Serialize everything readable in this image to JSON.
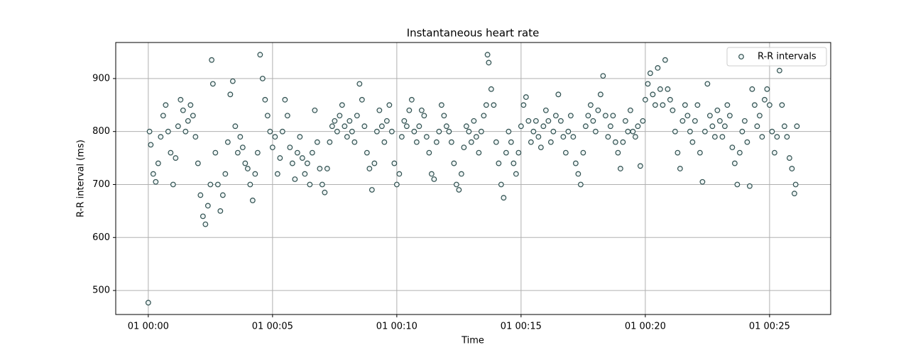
{
  "chart_data": {
    "type": "scatter",
    "title": "Instantaneous heart rate",
    "xlabel": "Time",
    "ylabel": "R-R interval (ms)",
    "series": [
      {
        "name": "R-R intervals",
        "color": "#2f4f4f",
        "marker_fill": "#eef4f4",
        "x": [
          0,
          0.05,
          0.1,
          0.2,
          0.3,
          0.4,
          0.5,
          0.6,
          0.7,
          0.8,
          0.9,
          1.0,
          1.1,
          1.2,
          1.3,
          1.4,
          1.5,
          1.6,
          1.7,
          1.8,
          1.9,
          2.0,
          2.1,
          2.2,
          2.3,
          2.4,
          2.5,
          2.55,
          2.6,
          2.7,
          2.8,
          2.9,
          3.0,
          3.1,
          3.2,
          3.3,
          3.4,
          3.5,
          3.6,
          3.7,
          3.8,
          3.9,
          4.0,
          4.1,
          4.2,
          4.3,
          4.4,
          4.5,
          4.6,
          4.7,
          4.8,
          4.9,
          5.0,
          5.1,
          5.2,
          5.3,
          5.4,
          5.5,
          5.6,
          5.7,
          5.8,
          5.9,
          6.0,
          6.1,
          6.2,
          6.3,
          6.4,
          6.5,
          6.6,
          6.7,
          6.8,
          6.9,
          7.0,
          7.1,
          7.2,
          7.3,
          7.4,
          7.5,
          7.6,
          7.7,
          7.8,
          7.9,
          8.0,
          8.1,
          8.2,
          8.3,
          8.4,
          8.5,
          8.6,
          8.7,
          8.8,
          8.9,
          9.0,
          9.1,
          9.2,
          9.3,
          9.4,
          9.5,
          9.6,
          9.7,
          9.8,
          9.9,
          10.0,
          10.1,
          10.2,
          10.3,
          10.4,
          10.5,
          10.6,
          10.7,
          10.8,
          10.9,
          11.0,
          11.1,
          11.2,
          11.3,
          11.4,
          11.5,
          11.6,
          11.7,
          11.8,
          11.9,
          12.0,
          12.1,
          12.2,
          12.3,
          12.4,
          12.5,
          12.6,
          12.7,
          12.8,
          12.9,
          13.0,
          13.1,
          13.2,
          13.3,
          13.4,
          13.5,
          13.6,
          13.65,
          13.7,
          13.8,
          13.9,
          14.0,
          14.1,
          14.2,
          14.3,
          14.4,
          14.5,
          14.6,
          14.7,
          14.8,
          14.9,
          15.0,
          15.1,
          15.2,
          15.3,
          15.4,
          15.5,
          15.6,
          15.7,
          15.8,
          15.9,
          16.0,
          16.1,
          16.2,
          16.3,
          16.4,
          16.5,
          16.6,
          16.7,
          16.8,
          16.9,
          17.0,
          17.1,
          17.2,
          17.3,
          17.4,
          17.5,
          17.6,
          17.7,
          17.8,
          17.9,
          18.0,
          18.1,
          18.2,
          18.3,
          18.4,
          18.5,
          18.6,
          18.7,
          18.8,
          18.9,
          19.0,
          19.1,
          19.2,
          19.3,
          19.4,
          19.5,
          19.6,
          19.7,
          19.8,
          19.9,
          20.0,
          20.1,
          20.2,
          20.3,
          20.4,
          20.5,
          20.6,
          20.7,
          20.8,
          20.9,
          21.0,
          21.1,
          21.2,
          21.3,
          21.4,
          21.5,
          21.6,
          21.7,
          21.8,
          21.9,
          22.0,
          22.1,
          22.2,
          22.3,
          22.4,
          22.5,
          22.6,
          22.7,
          22.8,
          22.9,
          23.0,
          23.1,
          23.2,
          23.3,
          23.4,
          23.5,
          23.6,
          23.7,
          23.8,
          23.9,
          24.0,
          24.1,
          24.2,
          24.3,
          24.4,
          24.5,
          24.6,
          24.7,
          24.8,
          24.9,
          25.0,
          25.1,
          25.2,
          25.3,
          25.4,
          25.5,
          25.6,
          25.7,
          25.8,
          25.9,
          26.0,
          26.05,
          26.1
        ],
        "values": [
          477,
          800,
          775,
          720,
          705,
          740,
          790,
          830,
          850,
          800,
          760,
          700,
          750,
          810,
          860,
          840,
          800,
          820,
          850,
          830,
          790,
          740,
          680,
          640,
          625,
          660,
          700,
          935,
          890,
          760,
          700,
          650,
          680,
          720,
          780,
          870,
          895,
          810,
          760,
          790,
          770,
          740,
          730,
          700,
          670,
          720,
          760,
          945,
          900,
          860,
          830,
          800,
          770,
          790,
          720,
          750,
          800,
          860,
          830,
          770,
          740,
          710,
          760,
          790,
          750,
          720,
          740,
          700,
          760,
          840,
          780,
          730,
          700,
          685,
          730,
          780,
          810,
          820,
          800,
          830,
          850,
          810,
          790,
          820,
          800,
          780,
          830,
          890,
          860,
          810,
          760,
          730,
          690,
          740,
          800,
          840,
          810,
          780,
          820,
          850,
          800,
          740,
          700,
          720,
          790,
          820,
          810,
          840,
          860,
          800,
          780,
          810,
          840,
          830,
          790,
          760,
          720,
          710,
          780,
          800,
          850,
          830,
          810,
          800,
          780,
          740,
          700,
          690,
          720,
          770,
          810,
          800,
          780,
          820,
          790,
          760,
          800,
          830,
          850,
          945,
          930,
          880,
          850,
          780,
          740,
          700,
          675,
          760,
          800,
          780,
          740,
          720,
          760,
          810,
          850,
          865,
          820,
          780,
          800,
          820,
          790,
          770,
          810,
          840,
          820,
          780,
          800,
          830,
          870,
          820,
          790,
          760,
          800,
          830,
          790,
          740,
          720,
          700,
          760,
          810,
          830,
          850,
          820,
          800,
          840,
          870,
          905,
          830,
          790,
          810,
          830,
          780,
          760,
          730,
          780,
          820,
          800,
          840,
          800,
          790,
          810,
          735,
          820,
          860,
          890,
          910,
          870,
          850,
          920,
          880,
          850,
          935,
          880,
          860,
          840,
          800,
          760,
          730,
          820,
          850,
          830,
          800,
          780,
          820,
          850,
          760,
          705,
          800,
          890,
          830,
          810,
          790,
          840,
          820,
          790,
          810,
          850,
          830,
          770,
          740,
          700,
          760,
          800,
          820,
          780,
          697,
          880,
          850,
          810,
          830,
          790,
          860,
          880,
          850,
          800,
          760,
          790,
          915,
          850,
          810,
          790,
          750,
          730,
          683,
          700,
          810
        ]
      }
    ],
    "xlim": [
      -1.31,
      27.46
    ],
    "ylim": [
      454.7,
      968
    ],
    "xticks": [
      {
        "value": 0,
        "label": "01 00:00"
      },
      {
        "value": 5,
        "label": "01 00:05"
      },
      {
        "value": 10,
        "label": "01 00:10"
      },
      {
        "value": 15,
        "label": "01 00:15"
      },
      {
        "value": 20,
        "label": "01 00:20"
      },
      {
        "value": 25,
        "label": "01 00:25"
      }
    ],
    "yticks": [
      500,
      600,
      700,
      800,
      900
    ],
    "grid": true,
    "legend": "upper right"
  }
}
